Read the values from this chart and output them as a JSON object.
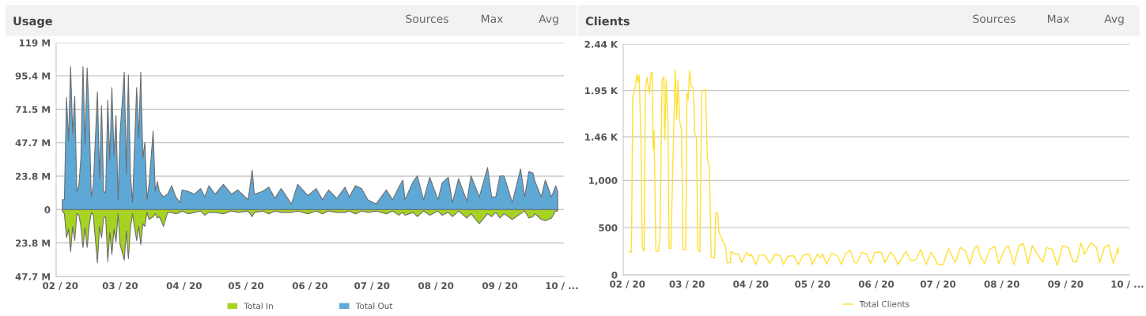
{
  "chart_data": [
    {
      "type": "area",
      "title": "Usage",
      "annotations": [
        "Sources",
        "Max",
        "Avg"
      ],
      "x": [
        "2020-02-02",
        "2020-02-03",
        "2020-02-04",
        "2020-02-05",
        "2020-02-06",
        "2020-02-07",
        "2020-02-08",
        "2020-02-09",
        "2020-02-10",
        "2020-02-11",
        "2020-02-12",
        "2020-02-13",
        "2020-02-14",
        "2020-02-15",
        "2020-02-16",
        "2020-02-17",
        "2020-02-19",
        "2020-02-20",
        "2020-02-21",
        "2020-02-22",
        "2020-02-23",
        "2020-02-24",
        "2020-02-25",
        "2020-02-26",
        "2020-02-27",
        "2020-02-28",
        "2020-02-29",
        "2020-03-01",
        "2020-03-03",
        "2020-03-04",
        "2020-03-05",
        "2020-03-06",
        "2020-03-07",
        "2020-03-09",
        "2020-03-10",
        "2020-03-11",
        "2020-03-12",
        "2020-03-13",
        "2020-03-14",
        "2020-03-15",
        "2020-03-17",
        "2020-03-18",
        "2020-03-19",
        "2020-03-20",
        "2020-03-22",
        "2020-03-24",
        "2020-03-26",
        "2020-03-28",
        "2020-03-30",
        "2020-03-31",
        "2020-04-03",
        "2020-04-06",
        "2020-04-09",
        "2020-04-11",
        "2020-04-13",
        "2020-04-16",
        "2020-04-20",
        "2020-04-24",
        "2020-04-27",
        "2020-05-02",
        "2020-05-04",
        "2020-05-05",
        "2020-05-09",
        "2020-05-12",
        "2020-05-15",
        "2020-05-18",
        "2020-05-23",
        "2020-05-26",
        "2020-05-31",
        "2020-06-04",
        "2020-06-07",
        "2020-06-10",
        "2020-06-14",
        "2020-06-18",
        "2020-06-20",
        "2020-06-23",
        "2020-06-26",
        "2020-06-29",
        "2020-07-03",
        "2020-07-08",
        "2020-07-11",
        "2020-07-14",
        "2020-07-16",
        "2020-07-17",
        "2020-07-21",
        "2020-07-23",
        "2020-07-26",
        "2020-07-29",
        "2020-08-02",
        "2020-08-04",
        "2020-08-07",
        "2020-08-09",
        "2020-08-12",
        "2020-08-16",
        "2020-08-18",
        "2020-08-22",
        "2020-08-26",
        "2020-08-28",
        "2020-08-30",
        "2020-09-01",
        "2020-09-03",
        "2020-09-07",
        "2020-09-11",
        "2020-09-13",
        "2020-09-15",
        "2020-09-17",
        "2020-09-18",
        "2020-09-21",
        "2020-09-23",
        "2020-09-26",
        "2020-09-28",
        "2020-09-29"
      ],
      "series": [
        {
          "name": "Total In",
          "color": "#a6d321",
          "values": [
            -1,
            -3,
            -20,
            -14,
            -30,
            -12,
            -22,
            -3,
            -4,
            -12,
            -27,
            -13,
            -27,
            -12,
            -2,
            -4,
            -38,
            -12,
            -20,
            -6,
            -5,
            -37,
            -16,
            -32,
            -14,
            -23,
            -3,
            -25,
            -36,
            -15,
            -35,
            -13,
            -3,
            -22,
            -12,
            -25,
            -10,
            -12,
            -2,
            -7,
            -5,
            -3,
            -6,
            -5,
            -12,
            -2,
            -2,
            -3,
            -2,
            -1,
            -3,
            -2,
            -1,
            -4,
            -2,
            -2,
            -3,
            -1,
            -2,
            -1,
            -5,
            -2,
            -1,
            -3,
            -1,
            -2,
            -2,
            -1,
            -3,
            -1,
            -3,
            -1,
            -2,
            -2,
            -1,
            -3,
            -1,
            -2,
            -1,
            -3,
            -1,
            -4,
            -2,
            -4,
            -2,
            -5,
            -1,
            -4,
            -1,
            -4,
            -2,
            -5,
            -1,
            -6,
            -3,
            -10,
            -3,
            -5,
            -2,
            -6,
            -3,
            -7,
            -3,
            -1,
            -6,
            -5,
            -3,
            -7,
            -8,
            -6,
            -1,
            -1
          ]
        },
        {
          "name": "Total Out",
          "color": "#5ea8d6",
          "values": [
            7,
            7,
            80,
            49,
            102,
            54,
            81,
            13,
            17,
            37,
            102,
            46,
            101,
            67,
            9,
            17,
            84,
            22,
            74,
            13,
            12,
            78,
            35,
            87,
            38,
            67,
            7,
            55,
            98,
            26,
            96,
            24,
            5,
            87,
            51,
            98,
            37,
            48,
            7,
            18,
            56,
            13,
            20,
            13,
            9,
            11,
            17,
            9,
            5,
            14,
            13,
            11,
            15,
            9,
            17,
            11,
            18,
            11,
            14,
            7,
            28,
            11,
            13,
            16,
            8,
            15,
            4,
            18,
            10,
            15,
            7,
            14,
            8,
            16,
            9,
            17,
            15,
            7,
            4,
            14,
            7,
            16,
            21,
            7,
            20,
            24,
            7,
            23,
            7,
            19,
            23,
            5,
            22,
            6,
            24,
            9,
            30,
            9,
            9,
            24,
            24,
            5,
            29,
            9,
            27,
            26,
            20,
            9,
            21,
            9,
            17,
            13
          ]
        }
      ],
      "xlim": [
        "2020-01-30",
        "2020-10-02"
      ],
      "xticks": [
        {
          "value": "2020-02-01",
          "label": "02 / 20"
        },
        {
          "value": "2020-03-01",
          "label": "03 / 20"
        },
        {
          "value": "2020-04-01",
          "label": "04 / 20"
        },
        {
          "value": "2020-05-01",
          "label": "05 / 20"
        },
        {
          "value": "2020-06-01",
          "label": "06 / 20"
        },
        {
          "value": "2020-07-01",
          "label": "07 / 20"
        },
        {
          "value": "2020-08-01",
          "label": "08 / 20"
        },
        {
          "value": "2020-09-01",
          "label": "09 / 20"
        },
        {
          "value": "2020-10-01",
          "label": "10 / ..."
        }
      ],
      "ylim": [
        -47.7,
        119
      ],
      "yticks": [
        {
          "value": -47.7,
          "label": "47.7 M"
        },
        {
          "value": -23.8,
          "label": "23.8 M"
        },
        0,
        {
          "value": 23.8,
          "label": "23.8 M"
        },
        {
          "value": 47.7,
          "label": "47.7 M"
        },
        {
          "value": 71.5,
          "label": "71.5 M"
        },
        {
          "value": 95.4,
          "label": "95.4 M"
        },
        {
          "value": 119,
          "label": "119 M"
        }
      ],
      "grid": "y",
      "legend": "bottom"
    },
    {
      "type": "line",
      "title": "Clients",
      "annotations": [
        "Sources",
        "Max",
        "Avg"
      ],
      "x": [
        "2020-02-01T21:00",
        "2020-02-03T00:00",
        "2020-02-03T15:00",
        "2020-02-04T18:00",
        "2020-02-05T15:00",
        "2020-02-06T06:00",
        "2020-02-06T18:00",
        "2020-02-07T15:00",
        "2020-02-08T06:00",
        "2020-02-09T03:00",
        "2020-02-09T18:00",
        "2020-02-10T12:00",
        "2020-02-11T18:00",
        "2020-02-12T15:00",
        "2020-02-13T03:00",
        "2020-02-13T12:00",
        "2020-02-14T00:00",
        "2020-02-14T21:00",
        "2020-02-16T03:00",
        "2020-02-16T21:00",
        "2020-02-17T21:00",
        "2020-02-18T18:00",
        "2020-02-19T06:00",
        "2020-02-19T21:00",
        "2020-02-20T18:00",
        "2020-02-21T06:00",
        "2020-02-22T03:00",
        "2020-02-23T15:00",
        "2020-02-24T06:00",
        "2020-02-25T00:00",
        "2020-02-25T15:00",
        "2020-02-26T12:00",
        "2020-02-27T09:00",
        "2020-02-28T00:00",
        "2020-02-29T09:00",
        "2020-03-01T00:00",
        "2020-03-01T15:00",
        "2020-03-02T06:00",
        "2020-03-03T03:00",
        "2020-03-04T03:00",
        "2020-03-04T18:00",
        "2020-03-05T15:00",
        "2020-03-06T06:00",
        "2020-03-07T06:00",
        "2020-03-08T03:00",
        "2020-03-08T18:00",
        "2020-03-10T00:00",
        "2020-03-10T21:00",
        "2020-03-11T21:00",
        "2020-03-12T18:00",
        "2020-03-14T09:00",
        "2020-03-15T00:00",
        "2020-03-15T21:00",
        "2020-03-16T12:00",
        "2020-03-17T09:00",
        "2020-03-18T15:00",
        "2020-03-19T15:00",
        "2020-03-20T12:00",
        "2020-03-22T03:00",
        "2020-03-22T09:00",
        "2020-03-24T06:00",
        "2020-03-26T03:00",
        "2020-03-27T15:00",
        "2020-03-29T21:00",
        "2020-03-31T09:00",
        "2020-04-01T06:00",
        "2020-04-03T09:00",
        "2020-04-05T06:00",
        "2020-04-07T21:00",
        "2020-04-10T06:00",
        "2020-04-12T18:00",
        "2020-04-15T09:00",
        "2020-04-16T21:00",
        "2020-04-19T00:00",
        "2020-04-22T00:00",
        "2020-04-24T03:00",
        "2020-04-26T12:00",
        "2020-04-29T12:00",
        "2020-04-30T18:00",
        "2020-05-03T12:00",
        "2020-05-04T18:00",
        "2020-05-06T00:00",
        "2020-05-07T21:00",
        "2020-05-10T06:00",
        "2020-05-13T03:00",
        "2020-05-15T00:00",
        "2020-05-17T03:00",
        "2020-05-19T06:00",
        "2020-05-21T12:00",
        "2020-05-22T18:00",
        "2020-05-24T21:00",
        "2020-05-27T09:00",
        "2020-05-29T06:00",
        "2020-05-31T09:00",
        "2020-06-03T09:00",
        "2020-06-05T06:00",
        "2020-06-07T21:00",
        "2020-06-09T18:00",
        "2020-06-11T12:00",
        "2020-06-15T09:00",
        "2020-06-17T18:00",
        "2020-06-20T06:00",
        "2020-06-22T15:00",
        "2020-06-25T06:00",
        "2020-06-27T18:00",
        "2020-07-01T00:00",
        "2020-07-03T12:00",
        "2020-07-06T00:00",
        "2020-07-09T09:00",
        "2020-07-11T21:00",
        "2020-07-14T09:00",
        "2020-07-16T12:00",
        "2020-07-18T09:00",
        "2020-07-20T06:00",
        "2020-07-21T12:00",
        "2020-07-23T15:00",
        "2020-07-26T03:00",
        "2020-07-28T15:00",
        "2020-07-30T12:00",
        "2020-08-02T06:00",
        "2020-08-04T03:00",
        "2020-08-06T21:00",
        "2020-08-09T09:00",
        "2020-08-11T12:00",
        "2020-08-13T18:00",
        "2020-08-15T21:00",
        "2020-08-18T15:00",
        "2020-08-20T21:00",
        "2020-08-22T18:00",
        "2020-08-25T12:00",
        "2020-08-28T00:00",
        "2020-08-30T12:00",
        "2020-09-02T06:00",
        "2020-09-04T15:00",
        "2020-09-06T09:00",
        "2020-09-08T12:00",
        "2020-09-10T06:00",
        "2020-09-13T06:00",
        "2020-09-16T00:00",
        "2020-09-17T12:00",
        "2020-09-19T21:00",
        "2020-09-22T00:00",
        "2020-09-24T03:00",
        "2020-09-26T12:00",
        "2020-09-26T18:00"
      ],
      "series": [
        {
          "name": "Total Clients",
          "color": "#ffe033",
          "values": [
            250,
            240,
            1880,
            1970,
            2120,
            2040,
            2110,
            1410,
            290,
            250,
            1960,
            2090,
            1920,
            2140,
            2140,
            1330,
            1530,
            250,
            250,
            410,
            2060,
            2100,
            1430,
            2060,
            1640,
            280,
            280,
            1600,
            2170,
            1650,
            2060,
            1620,
            1530,
            270,
            270,
            1930,
            1860,
            2160,
            1990,
            1980,
            1510,
            1430,
            270,
            240,
            1920,
            1950,
            1960,
            1230,
            1130,
            190,
            180,
            660,
            660,
            450,
            410,
            340,
            320,
            130,
            130,
            250,
            220,
            220,
            130,
            240,
            200,
            220,
            110,
            210,
            210,
            120,
            220,
            200,
            110,
            200,
            200,
            110,
            210,
            220,
            110,
            220,
            180,
            220,
            110,
            230,
            200,
            110,
            230,
            260,
            130,
            130,
            240,
            220,
            120,
            240,
            240,
            130,
            240,
            200,
            110,
            250,
            150,
            160,
            270,
            110,
            240,
            110,
            110,
            280,
            130,
            290,
            250,
            110,
            270,
            310,
            200,
            120,
            270,
            300,
            120,
            270,
            310,
            110,
            310,
            330,
            120,
            310,
            210,
            130,
            290,
            270,
            100,
            310,
            290,
            140,
            140,
            340,
            220,
            340,
            290,
            130,
            290,
            320,
            120,
            290,
            220
          ]
        }
      ],
      "xlim": [
        "2020-01-30",
        "2020-10-02"
      ],
      "xticks": [
        {
          "value": "2020-02-01",
          "label": "02 / 20"
        },
        {
          "value": "2020-03-01",
          "label": "03 / 20"
        },
        {
          "value": "2020-04-01",
          "label": "04 / 20"
        },
        {
          "value": "2020-05-01",
          "label": "05 / 20"
        },
        {
          "value": "2020-06-01",
          "label": "06 / 20"
        },
        {
          "value": "2020-07-01",
          "label": "07 / 20"
        },
        {
          "value": "2020-08-01",
          "label": "08 / 20"
        },
        {
          "value": "2020-09-01",
          "label": "09 / 20"
        },
        {
          "value": "2020-10-01",
          "label": "10 / ..."
        }
      ],
      "ylim": [
        0,
        2440
      ],
      "yticks": [
        0,
        500,
        {
          "value": 1000,
          "label": "1,000"
        },
        {
          "value": 1460,
          "label": "1.46 K"
        },
        {
          "value": 1950,
          "label": "1.95 K"
        },
        {
          "value": 2440,
          "label": "2.44 K"
        }
      ],
      "grid": "y",
      "legend": "bottom"
    }
  ]
}
